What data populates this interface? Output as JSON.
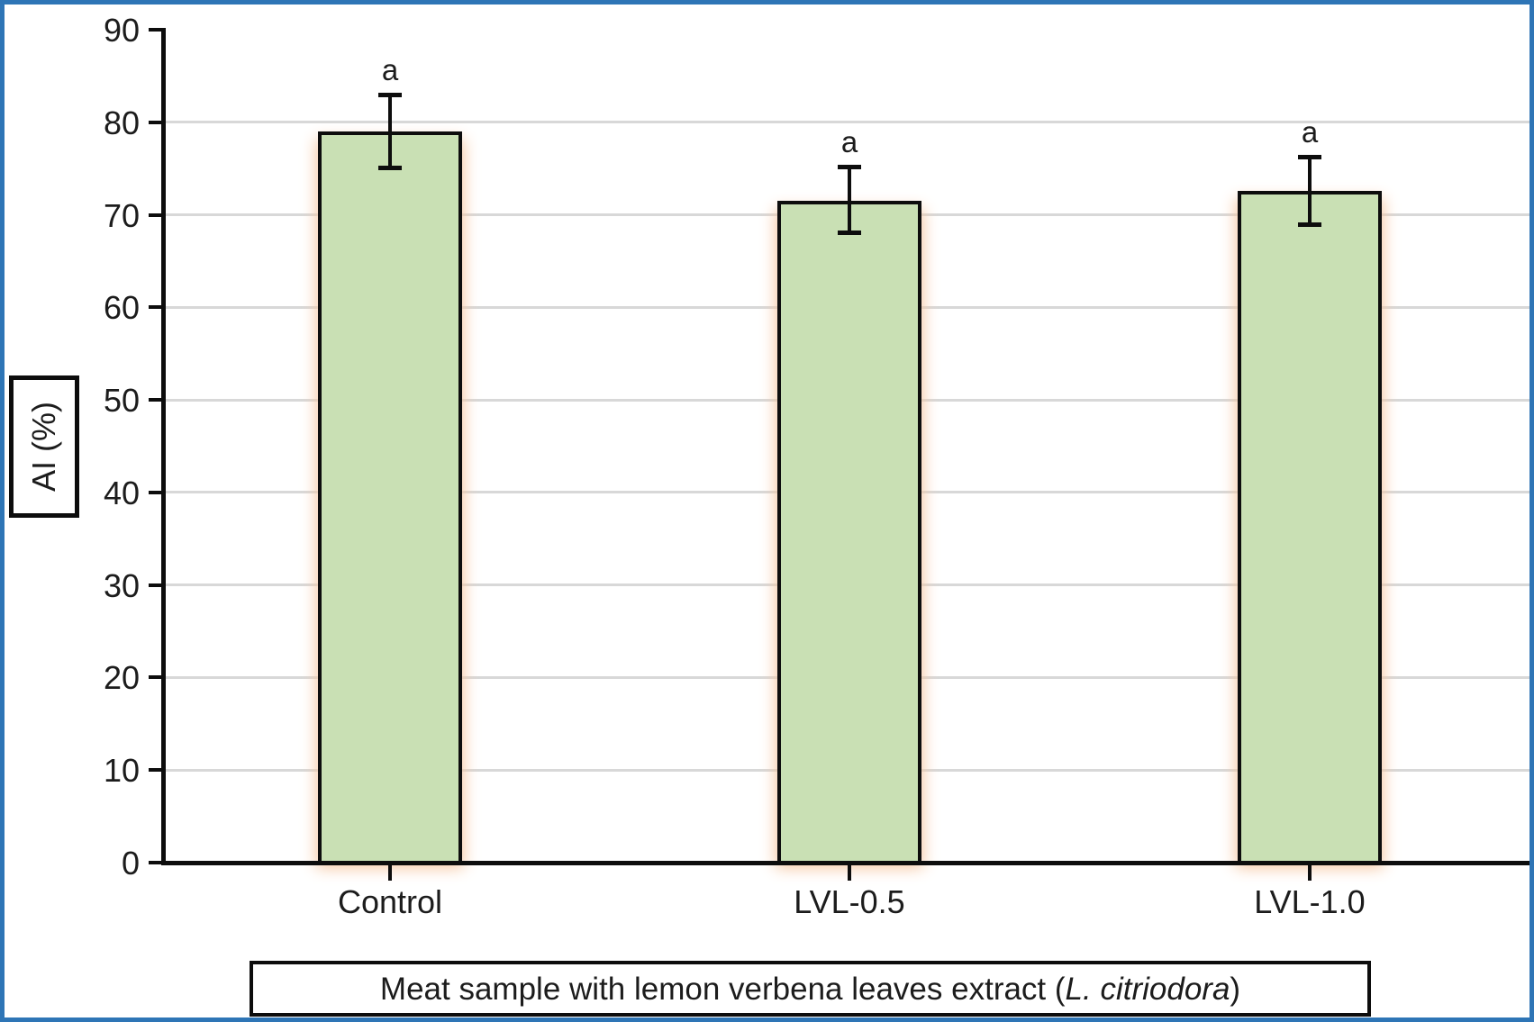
{
  "figure": {
    "y_axis_label": "AI (%)",
    "x_title": {
      "prefix": "Meat sample with lemon verbena leaves extract (",
      "italic": "L. citriodora",
      "suffix": ")"
    }
  },
  "colors": {
    "frame_border": "#2e75b6",
    "bar_fill": "#c9e0b4",
    "bar_border": "#0d0d0d",
    "bar_glow": "#f6c7a2",
    "gridline": "#d8d8d8",
    "text": "#1c1c1c"
  },
  "chart_data": {
    "type": "bar",
    "title": "",
    "xlabel": "Meat sample with lemon verbena leaves extract (L. citriodora)",
    "ylabel": "AI (%)",
    "categories": [
      "Control",
      "LVL-0.5",
      "LVL-1.0"
    ],
    "values": [
      79.0,
      71.5,
      72.6
    ],
    "error_high": [
      83.0,
      75.2,
      76.3
    ],
    "error_low": [
      75.0,
      68.0,
      68.9
    ],
    "significance_letters": [
      "a",
      "a",
      "a"
    ],
    "ylim": [
      0,
      90
    ],
    "yticks": [
      0,
      10,
      20,
      30,
      40,
      50,
      60,
      70,
      80,
      90
    ],
    "grid": "horizontal",
    "legend": "none"
  }
}
